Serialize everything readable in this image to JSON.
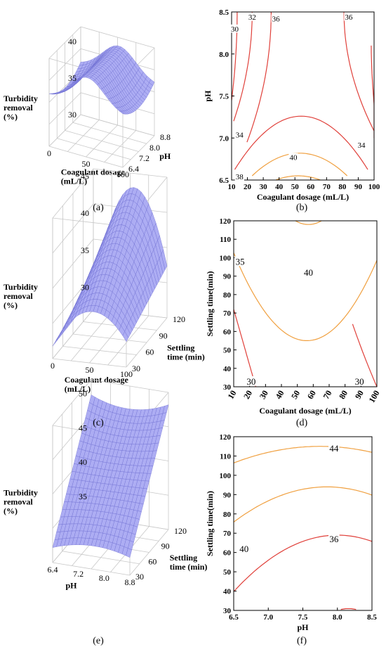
{
  "panel_labels": [
    "(a)",
    "(b)",
    "(c)",
    "(d)",
    "(e)",
    "(f)"
  ],
  "colors": {
    "surface_fill": "#a9a9f2",
    "surface_mesh": "#6a6ad0",
    "contour_red": "#e0403a",
    "contour_orange": "#f0a040",
    "box": "#c8c8c8"
  },
  "chart_data": [
    {
      "id": "a",
      "type": "surface",
      "zlabel": [
        "Turbidity",
        "removal",
        "(%)"
      ],
      "xlabel": [
        "Coagulant dosage",
        "(mL/L)"
      ],
      "ylabel": [
        "pH"
      ],
      "z_ticks": [
        "30",
        "35",
        "40"
      ],
      "x_ticks": [
        "0",
        "50",
        "100"
      ],
      "y_ticks": [
        "6.4",
        "7.2",
        "8.0",
        "8.8"
      ],
      "xlim": [
        0,
        100
      ],
      "ylim": [
        6.4,
        8.8
      ],
      "zlim": [
        30,
        42
      ],
      "shape": "saddle"
    },
    {
      "id": "b",
      "type": "contour",
      "xlabel": "Coagulant dosage (mL/L)",
      "ylabel": "pH",
      "x_ticks": [
        "10",
        "20",
        "30",
        "40",
        "50",
        "60",
        "70",
        "80",
        "90",
        "100"
      ],
      "y_ticks": [
        "6.5",
        "7.0",
        "7.5",
        "8.0",
        "8.5"
      ],
      "xlim": [
        10,
        100
      ],
      "ylim": [
        6.5,
        8.5
      ],
      "contour_labels": [
        {
          "text": "30",
          "x": 12,
          "y": 8.3
        },
        {
          "text": "32",
          "x": 23,
          "y": 8.44
        },
        {
          "text": "36",
          "x": 38,
          "y": 8.42
        },
        {
          "text": "36",
          "x": 84,
          "y": 8.44
        },
        {
          "text": "34",
          "x": 15,
          "y": 7.04
        },
        {
          "text": "40",
          "x": 49,
          "y": 6.77
        },
        {
          "text": "34",
          "x": 92,
          "y": 6.92
        },
        {
          "text": "38",
          "x": 15,
          "y": 6.54
        }
      ]
    },
    {
      "id": "c",
      "type": "surface",
      "zlabel": [
        "Turbidity",
        "removal",
        "(%)"
      ],
      "xlabel": [
        "Coagulant dosage",
        "(mL/L)"
      ],
      "ylabel": [
        "Settling",
        "time (min)"
      ],
      "z_ticks": [
        "30",
        "35",
        "40",
        "45"
      ],
      "x_ticks": [
        "0",
        "50",
        "100"
      ],
      "y_ticks": [
        "30",
        "60",
        "90",
        "120"
      ],
      "xlim": [
        0,
        100
      ],
      "ylim": [
        30,
        120
      ],
      "zlim": [
        27,
        46
      ],
      "shape": "ridge"
    },
    {
      "id": "d",
      "type": "contour",
      "xlabel": "Coagulant dosage (mL/L)",
      "ylabel": "Settling time(min)",
      "x_ticks": [
        "10",
        "20",
        "30",
        "40",
        "50",
        "60",
        "70",
        "80",
        "90",
        "100"
      ],
      "y_ticks": [
        "30",
        "40",
        "50",
        "60",
        "70",
        "80",
        "90",
        "100",
        "110",
        "120"
      ],
      "xlim": [
        10,
        100
      ],
      "ylim": [
        30,
        120
      ],
      "contour_labels": [
        {
          "text": "35",
          "x": 14,
          "y": 98
        },
        {
          "text": "40",
          "x": 57,
          "y": 92
        },
        {
          "text": "30",
          "x": 21,
          "y": 33
        },
        {
          "text": "30",
          "x": 89,
          "y": 33
        }
      ]
    },
    {
      "id": "e",
      "type": "surface",
      "zlabel": [
        "Turbidity",
        "removal",
        "(%)"
      ],
      "xlabel": [
        "pH"
      ],
      "ylabel": [
        "Settling",
        "time (min)"
      ],
      "z_ticks": [
        "35",
        "40",
        "45",
        "50"
      ],
      "x_ticks": [
        "6.4",
        "7.2",
        "8.0",
        "8.8"
      ],
      "y_ticks": [
        "30",
        "60",
        "90",
        "120"
      ],
      "xlim": [
        6.4,
        8.8
      ],
      "ylim": [
        30,
        120
      ],
      "zlim": [
        32,
        52
      ],
      "shape": "slope"
    },
    {
      "id": "f",
      "type": "contour",
      "xlabel": "pH",
      "ylabel": "Settling time(min)",
      "x_ticks": [
        "6.5",
        "7.0",
        "7.5",
        "8.0",
        "8.5"
      ],
      "y_ticks": [
        "30",
        "40",
        "50",
        "60",
        "70",
        "80",
        "90",
        "100",
        "110",
        "120"
      ],
      "xlim": [
        6.5,
        8.5
      ],
      "ylim": [
        30,
        120
      ],
      "contour_labels": [
        {
          "text": "44",
          "x": 7.95,
          "y": 114
        },
        {
          "text": "40",
          "x": 6.65,
          "y": 62
        },
        {
          "text": "36",
          "x": 7.95,
          "y": 67
        }
      ]
    }
  ]
}
